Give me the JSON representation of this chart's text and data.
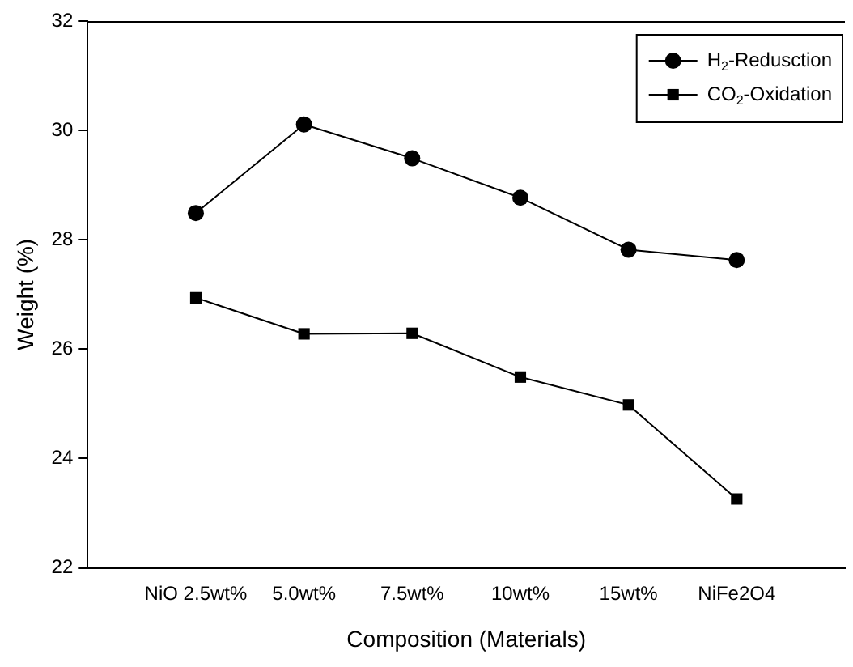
{
  "chart_data": {
    "type": "line",
    "xlabel": "Composition (Materials)",
    "ylabel": "Weight (%)",
    "categories": [
      "NiO 2.5wt%",
      "5.0wt%",
      "7.5wt%",
      "10wt%",
      "15wt%",
      "NiFe2O4"
    ],
    "series": [
      {
        "name": "H$_{2}$-Redusction",
        "color": "#000000",
        "marker": "circle",
        "values": [
          28.49,
          30.11,
          29.49,
          28.77,
          27.82,
          27.63
        ]
      },
      {
        "name": "CO$_{2}$-Oxidation",
        "color": "#000000",
        "marker": "square",
        "values": [
          26.94,
          26.28,
          26.29,
          25.49,
          24.98,
          23.26
        ]
      }
    ],
    "ylim": [
      22,
      32
    ],
    "yticks": [
      22,
      24,
      26,
      28,
      30,
      32
    ],
    "grid": false,
    "legend": "top right"
  }
}
